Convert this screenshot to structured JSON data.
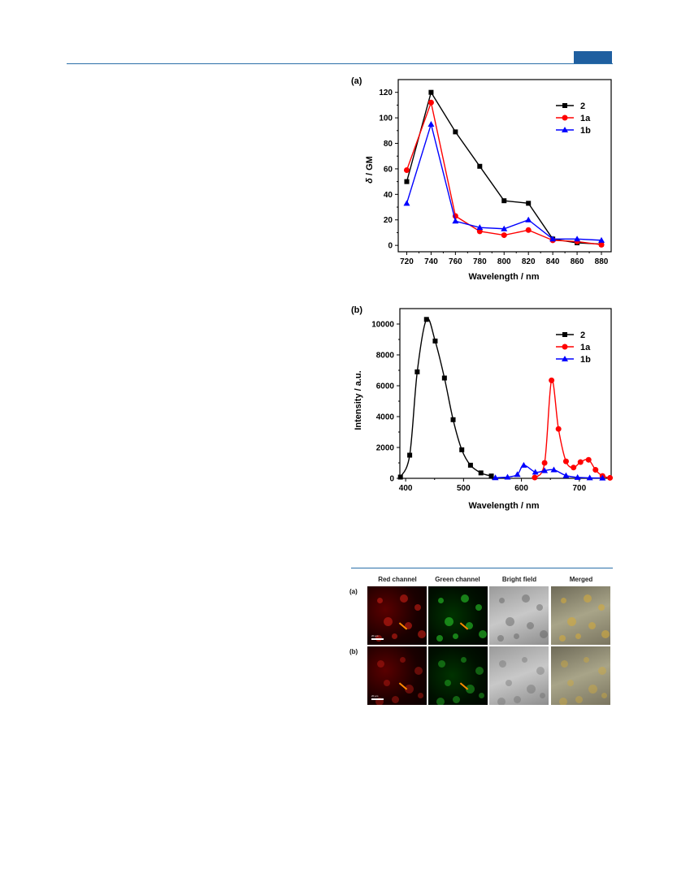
{
  "figures": {
    "a": {
      "panel_label": "(a)",
      "chart_data": {
        "type": "line",
        "ylabel_symbol": "δ",
        "ylabel_unit": " / GM",
        "xlabel": "Wavelength / nm",
        "xlim": [
          713,
          888
        ],
        "ylim": [
          -5,
          130
        ],
        "xticks": [
          720,
          740,
          760,
          780,
          800,
          820,
          840,
          860,
          880
        ],
        "yticks": [
          0,
          20,
          40,
          60,
          80,
          100,
          120
        ],
        "legend_position": "top-right",
        "x": [
          720,
          740,
          760,
          780,
          800,
          820,
          840,
          860,
          880
        ],
        "series": [
          {
            "name": "2",
            "color": "#000000",
            "marker": "square",
            "values": [
              50,
              120,
              89,
              62,
              35,
              33,
              5,
              2,
              1
            ]
          },
          {
            "name": "1a",
            "color": "#ff0000",
            "marker": "circle",
            "values": [
              59,
              112,
              23,
              11,
              8,
              12,
              4,
              3,
              0.5
            ]
          },
          {
            "name": "1b",
            "color": "#0000ff",
            "marker": "triangle",
            "values": [
              33,
              95,
              19,
              14,
              13,
              20,
              5,
              5,
              4
            ]
          }
        ]
      }
    },
    "b": {
      "panel_label": "(b)",
      "chart_data": {
        "type": "line",
        "ylabel": "Intensity / a.u.",
        "xlabel": "Wavelength / nm",
        "xlim": [
          390,
          755
        ],
        "ylim": [
          0,
          11000
        ],
        "xticks": [
          400,
          500,
          600,
          700
        ],
        "yticks": [
          0,
          2000,
          4000,
          6000,
          8000,
          10000
        ],
        "legend_position": "top-right",
        "series": [
          {
            "name": "2",
            "color": "#000000",
            "marker": "square",
            "x": [
              391,
              407,
              420,
              436,
              451,
              467,
              482,
              497,
              512,
              530,
              548
            ],
            "values": [
              80,
              1500,
              6900,
              10300,
              8900,
              6500,
              3800,
              1850,
              850,
              350,
              150
            ]
          },
          {
            "name": "1a",
            "color": "#ff0000",
            "marker": "circle",
            "x": [
              623,
              640,
              652,
              664,
              677,
              690,
              702,
              716,
              728,
              740,
              753
            ],
            "values": [
              50,
              1000,
              6350,
              3200,
              1100,
              700,
              1050,
              1200,
              550,
              150,
              30
            ]
          },
          {
            "name": "1b",
            "color": "#0000ff",
            "marker": "triangle",
            "x": [
              555,
              576,
              593,
              604,
              624,
              640,
              656,
              677,
              697,
              718,
              740
            ],
            "values": [
              40,
              80,
              250,
              850,
              400,
              500,
              550,
              180,
              60,
              30,
              20
            ]
          }
        ]
      }
    }
  },
  "microscopy": {
    "columns": [
      "Red channel",
      "Green channel",
      "Bright field",
      "Merged"
    ],
    "rows": [
      "(a)",
      "(b)"
    ],
    "scale_text": "20 μm"
  }
}
